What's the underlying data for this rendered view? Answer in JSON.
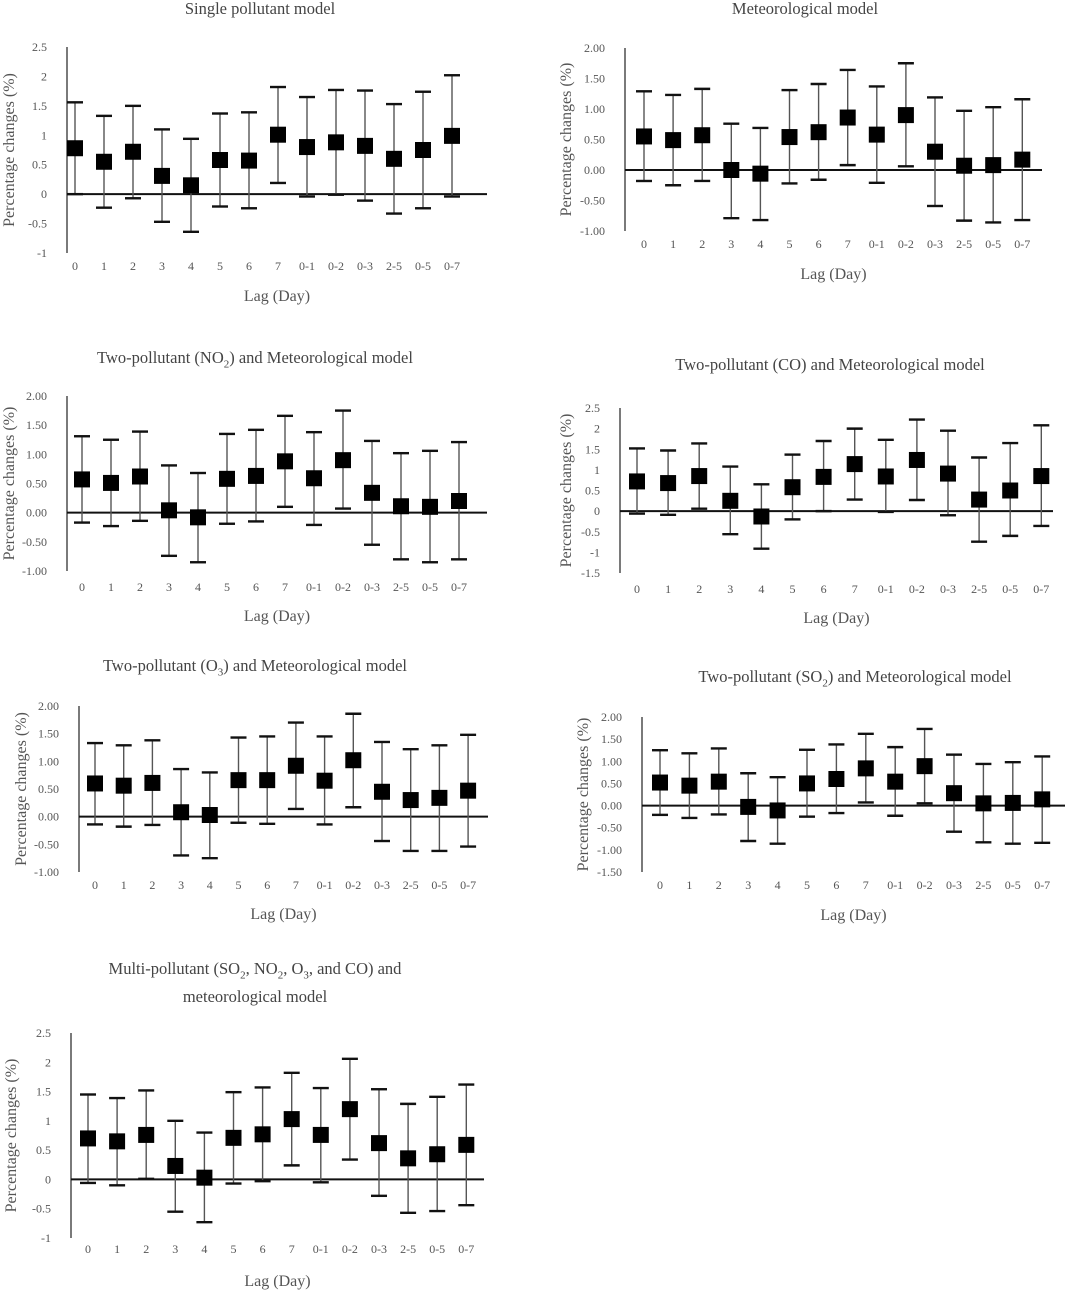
{
  "chart_data": [
    {
      "type": "errorbar",
      "title": "Single pollutant model",
      "xlabel": "Lag (Day)",
      "ylabel": "Percentage changes (%)",
      "yticks": [
        "2.5",
        "2",
        "1.5",
        "1",
        "0.5",
        "0",
        "-0.5",
        "-1"
      ],
      "ylim": [
        -1,
        2.5
      ],
      "categories": [
        "0",
        "1",
        "2",
        "3",
        "4",
        "5",
        "6",
        "7",
        "0-1",
        "0-2",
        "0-3",
        "2-5",
        "0-5",
        "0-7"
      ],
      "estimates": [
        0.78,
        0.55,
        0.72,
        0.31,
        0.15,
        0.58,
        0.57,
        1.01,
        0.8,
        0.88,
        0.82,
        0.6,
        0.75,
        0.99
      ],
      "lower": [
        0.0,
        -0.23,
        -0.07,
        -0.47,
        -0.64,
        -0.21,
        -0.24,
        0.19,
        -0.04,
        -0.01,
        -0.11,
        -0.33,
        -0.24,
        -0.04
      ],
      "upper": [
        1.56,
        1.33,
        1.5,
        1.1,
        0.94,
        1.37,
        1.39,
        1.82,
        1.65,
        1.77,
        1.76,
        1.53,
        1.74,
        2.02
      ]
    },
    {
      "type": "errorbar",
      "title": "Meteorological model",
      "xlabel": "Lag (Day)",
      "ylabel": "Percentage changes (%)",
      "yticks": [
        "2.00",
        "1.50",
        "1.00",
        "0.50",
        "0.00",
        "-0.50",
        "-1.00"
      ],
      "ylim": [
        -1,
        2
      ],
      "categories": [
        "0",
        "1",
        "2",
        "3",
        "4",
        "5",
        "6",
        "7",
        "0-1",
        "0-2",
        "0-3",
        "2-5",
        "0-5",
        "0-7"
      ],
      "estimates": [
        0.55,
        0.49,
        0.57,
        0.0,
        -0.06,
        0.54,
        0.62,
        0.86,
        0.58,
        0.9,
        0.3,
        0.07,
        0.08,
        0.17
      ],
      "lower": [
        -0.18,
        -0.25,
        -0.18,
        -0.79,
        -0.82,
        -0.22,
        -0.16,
        0.08,
        -0.21,
        0.06,
        -0.59,
        -0.83,
        -0.86,
        -0.82
      ],
      "upper": [
        1.29,
        1.23,
        1.33,
        0.76,
        0.69,
        1.31,
        1.41,
        1.64,
        1.37,
        1.75,
        1.19,
        0.97,
        1.03,
        1.16
      ]
    },
    {
      "type": "errorbar",
      "title_main": "Two-pollutant (NO",
      "title_sub": "2",
      "title_rest": ") and Meteorological model",
      "xlabel": "Lag (Day)",
      "ylabel": "Percentage changes (%)",
      "yticks": [
        "2.00",
        "1.50",
        "1.00",
        "0.50",
        "0.00",
        "-0.50",
        "-1.00"
      ],
      "ylim": [
        -1,
        2
      ],
      "categories": [
        "0",
        "1",
        "2",
        "3",
        "4",
        "5",
        "6",
        "7",
        "0-1",
        "0-2",
        "0-3",
        "2-5",
        "0-5",
        "0-7"
      ],
      "estimates": [
        0.57,
        0.51,
        0.62,
        0.04,
        -0.08,
        0.58,
        0.63,
        0.88,
        0.59,
        0.9,
        0.34,
        0.11,
        0.1,
        0.2
      ],
      "lower": [
        -0.17,
        -0.23,
        -0.14,
        -0.74,
        -0.85,
        -0.19,
        -0.15,
        0.1,
        -0.21,
        0.07,
        -0.55,
        -0.8,
        -0.85,
        -0.8
      ],
      "upper": [
        1.31,
        1.25,
        1.39,
        0.81,
        0.68,
        1.35,
        1.42,
        1.66,
        1.38,
        1.75,
        1.23,
        1.02,
        1.06,
        1.21
      ]
    },
    {
      "type": "errorbar",
      "title_main": "Two-pollutant (CO) and Meteorological model",
      "xlabel": "Lag (Day)",
      "ylabel": "Percentage changes (%)",
      "yticks": [
        "2.5",
        "2",
        "1.5",
        "1",
        "0.5",
        "0",
        "-0.5",
        "-1",
        "-1.5"
      ],
      "ylim": [
        -1.5,
        2.5
      ],
      "categories": [
        "0",
        "1",
        "2",
        "3",
        "4",
        "5",
        "6",
        "7",
        "0-1",
        "0-2",
        "0-3",
        "2-5",
        "0-5",
        "0-7"
      ],
      "estimates": [
        0.72,
        0.68,
        0.85,
        0.25,
        -0.13,
        0.58,
        0.83,
        1.14,
        0.84,
        1.24,
        0.91,
        0.28,
        0.5,
        0.85
      ],
      "lower": [
        -0.06,
        -0.09,
        0.06,
        -0.56,
        -0.91,
        -0.2,
        0.0,
        0.28,
        -0.02,
        0.27,
        -0.1,
        -0.74,
        -0.6,
        -0.36
      ],
      "upper": [
        1.52,
        1.47,
        1.64,
        1.08,
        0.65,
        1.37,
        1.7,
        2.0,
        1.73,
        2.22,
        1.95,
        1.3,
        1.65,
        2.08
      ]
    },
    {
      "type": "errorbar",
      "title_main": "Two-pollutant (O",
      "title_sub": "3",
      "title_rest": ") and Meteorological model",
      "xlabel": "Lag (Day)",
      "ylabel": "Percentage changes (%)",
      "yticks": [
        "2.00",
        "1.50",
        "1.00",
        "0.50",
        "0.00",
        "-0.50",
        "-1.00"
      ],
      "ylim": [
        -1,
        2
      ],
      "categories": [
        "0",
        "1",
        "2",
        "3",
        "4",
        "5",
        "6",
        "7",
        "0-1",
        "0-2",
        "0-3",
        "2-5",
        "0-5",
        "0-7"
      ],
      "estimates": [
        0.6,
        0.56,
        0.61,
        0.08,
        0.03,
        0.66,
        0.66,
        0.92,
        0.65,
        1.02,
        0.45,
        0.3,
        0.34,
        0.47
      ],
      "lower": [
        -0.14,
        -0.18,
        -0.15,
        -0.7,
        -0.75,
        -0.11,
        -0.13,
        0.14,
        -0.14,
        0.17,
        -0.44,
        -0.62,
        -0.62,
        -0.54
      ],
      "upper": [
        1.33,
        1.29,
        1.38,
        0.86,
        0.8,
        1.43,
        1.45,
        1.7,
        1.45,
        1.86,
        1.35,
        1.22,
        1.29,
        1.48
      ]
    },
    {
      "type": "errorbar",
      "title_main": "Two-pollutant (SO",
      "title_sub": "2",
      "title_rest": ") and Meteorological model",
      "xlabel": "Lag (Day)",
      "ylabel": "Percentage changes (%)",
      "yticks": [
        "2.00",
        "1.50",
        "1.00",
        "0.50",
        "0.00",
        "-0.50",
        "-1.00",
        "-1.50"
      ],
      "ylim": [
        -1.5,
        2
      ],
      "categories": [
        "0",
        "1",
        "2",
        "3",
        "4",
        "5",
        "6",
        "7",
        "0-1",
        "0-2",
        "0-3",
        "2-5",
        "0-5",
        "0-7"
      ],
      "estimates": [
        0.52,
        0.45,
        0.54,
        -0.03,
        -0.11,
        0.5,
        0.6,
        0.84,
        0.54,
        0.89,
        0.28,
        0.05,
        0.06,
        0.14
      ],
      "lower": [
        -0.21,
        -0.28,
        -0.2,
        -0.8,
        -0.86,
        -0.25,
        -0.17,
        0.07,
        -0.23,
        0.05,
        -0.59,
        -0.83,
        -0.86,
        -0.84
      ],
      "upper": [
        1.25,
        1.18,
        1.29,
        0.73,
        0.64,
        1.26,
        1.38,
        1.62,
        1.32,
        1.73,
        1.15,
        0.94,
        0.98,
        1.11
      ]
    },
    {
      "type": "errorbar",
      "title_line1": "Multi-pollutant (SO",
      "title_line1_sub1": "2",
      "title_line1_b": ", NO",
      "title_line1_sub2": "2",
      "title_line1_c": ", O",
      "title_line1_sub3": "3",
      "title_line1_d": ", and CO) and",
      "title_line2": "meteorological model",
      "xlabel": "Lag (Day)",
      "ylabel": "Percentage changes (%)",
      "yticks": [
        "2.5",
        "2",
        "1.5",
        "1",
        "0.5",
        "0",
        "-0.5",
        "-1"
      ],
      "ylim": [
        -1,
        2.5
      ],
      "categories": [
        "0",
        "1",
        "2",
        "3",
        "4",
        "5",
        "6",
        "7",
        "0-1",
        "0-2",
        "0-3",
        "2-5",
        "0-5",
        "0-7"
      ],
      "estimates": [
        0.7,
        0.65,
        0.76,
        0.23,
        0.03,
        0.71,
        0.77,
        1.03,
        0.76,
        1.2,
        0.62,
        0.36,
        0.43,
        0.59
      ],
      "lower": [
        -0.06,
        -0.1,
        0.01,
        -0.55,
        -0.73,
        -0.07,
        -0.03,
        0.24,
        -0.05,
        0.34,
        -0.28,
        -0.57,
        -0.54,
        -0.44
      ],
      "upper": [
        1.45,
        1.39,
        1.52,
        1.0,
        0.8,
        1.49,
        1.57,
        1.82,
        1.56,
        2.06,
        1.54,
        1.29,
        1.41,
        1.62
      ]
    }
  ]
}
